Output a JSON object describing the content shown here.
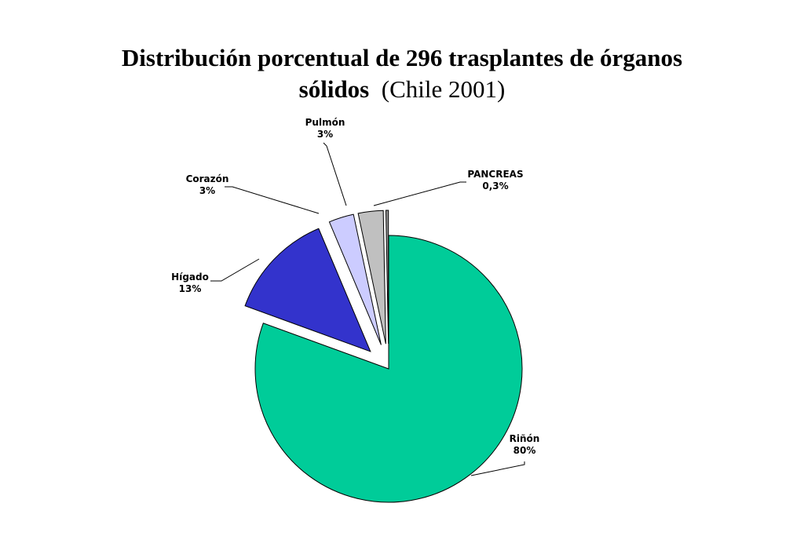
{
  "chart_data": {
    "type": "pie",
    "title_line1": "Distribución porcentual de 296 trasplantes de órganos",
    "title_line2_bold": "sólidos",
    "title_line2_normal": "(Chile 2001)",
    "slices": [
      {
        "name": "Riñón",
        "label": "80%",
        "value": 80,
        "color": "#00cc99",
        "exploded": false
      },
      {
        "name": "Hígado",
        "label": "13%",
        "value": 13,
        "color": "#3333cc",
        "exploded": true
      },
      {
        "name": "Corazón",
        "label": "3%",
        "value": 3,
        "color": "#ccccff",
        "exploded": true
      },
      {
        "name": "Pulmón",
        "label": "3%",
        "value": 3,
        "color": "#c0c0c0",
        "exploded": true
      },
      {
        "name": "PANCREAS",
        "label": "0,3%",
        "value": 0.3,
        "color": "#969696",
        "exploded": true
      }
    ]
  }
}
